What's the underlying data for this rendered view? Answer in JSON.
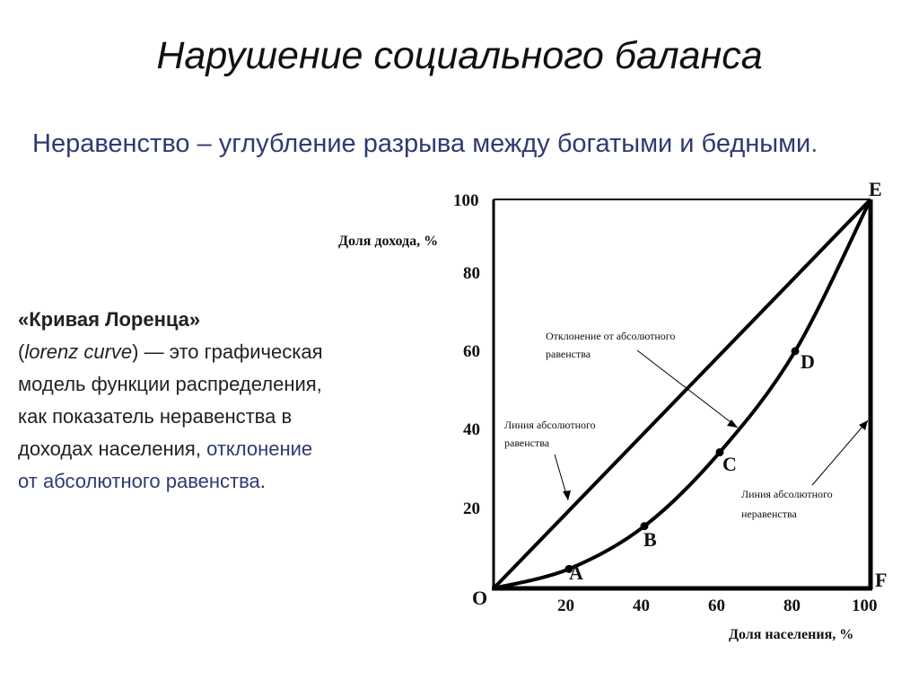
{
  "slide": {
    "title": "Нарушение социального баланса",
    "subtitle_main": "Неравенство – углубление разрыва между богатыми и бедными",
    "subtitle_tail": ".",
    "body": {
      "term": "«Кривая Лоренца»",
      "paren_open": "(",
      "term_en": "lorenz curve",
      "paren_close_dash": ") — это графическая модель функции распределения, как показатель неравенства в доходах населения,",
      "accent": "отклонение от абсолютного равенства",
      "end": "."
    }
  },
  "diagram": {
    "y_axis_title": "Доля дохода, %",
    "x_axis_title": "Доля населения, %",
    "y_ticks": [
      "20",
      "40",
      "60",
      "80",
      "100"
    ],
    "x_ticks": [
      "20",
      "40",
      "60",
      "80",
      "100"
    ],
    "points": {
      "O": "O",
      "A": "A",
      "B": "B",
      "C": "C",
      "D": "D",
      "E": "E",
      "F": "F"
    },
    "notes": {
      "deviation_l1": "Отклонение от абсолютного",
      "deviation_l2": "равенства",
      "equality_l1": "Линия абсолютного",
      "equality_l2": "равенства",
      "inequality_l1": "Линия абсолютного",
      "inequality_l2": "неравенства"
    },
    "lorenz_points": [
      [
        0,
        0
      ],
      [
        20,
        5
      ],
      [
        40,
        16
      ],
      [
        60,
        35
      ],
      [
        80,
        61
      ],
      [
        100,
        100
      ]
    ],
    "line_color": "#000000"
  }
}
